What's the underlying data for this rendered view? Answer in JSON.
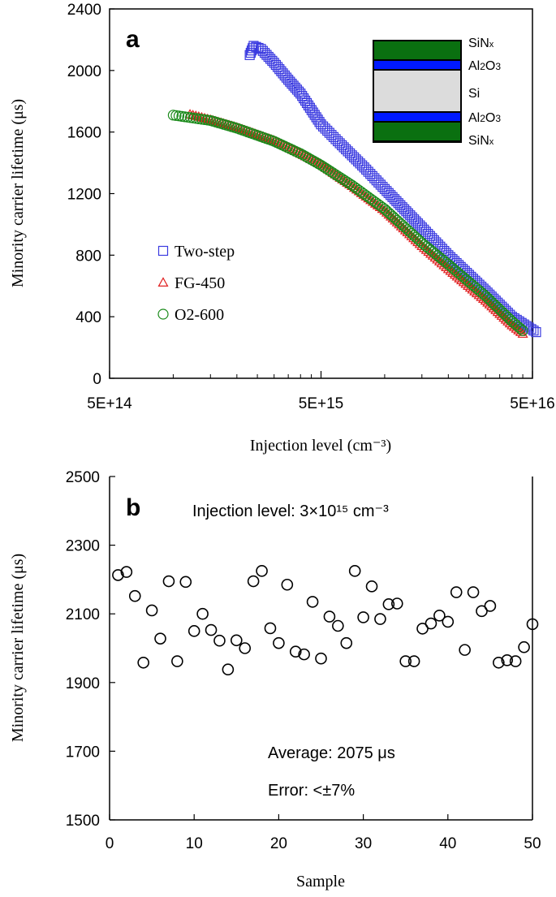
{
  "chart_data": [
    {
      "type": "scatter",
      "panel_label": "a",
      "xlabel": "Injection level (cm⁻³)",
      "ylabel": "Minority carrier lifetime (μs)",
      "x_scale": "log",
      "xlim": [
        500000000000000.0,
        5e+16
      ],
      "ylim": [
        0,
        2400
      ],
      "x_ticks": [
        "5E+14",
        "5E+15",
        "5E+16"
      ],
      "y_ticks": [
        "0",
        "400",
        "800",
        "1200",
        "1600",
        "2000",
        "2400"
      ],
      "legend_placement": "left",
      "inset_layers": [
        "SiNx",
        "Al2O3",
        "Si",
        "Al2O3",
        "SiNx"
      ],
      "inset_colors": {
        "SiNx": "#0a7010",
        "Al2O3": "#0019ff",
        "Si": "#dcdcdc"
      },
      "series": [
        {
          "name": "Two-step",
          "marker": "square",
          "color": "#3a3ae0",
          "x": [
            2300000000000000.0,
            2400000000000000.0,
            2600000000000000.0,
            3000000000000000.0,
            3500000000000000.0,
            4000000000000000.0,
            5000000000000000.0,
            6000000000000000.0,
            8000000000000000.0,
            1e+16,
            1.5e+16,
            2e+16,
            3e+16,
            4e+16,
            5.2e+16
          ],
          "y": [
            2100,
            2160,
            2140,
            2050,
            1940,
            1850,
            1650,
            1540,
            1370,
            1230,
            980,
            800,
            570,
            400,
            300
          ]
        },
        {
          "name": "FG-450",
          "marker": "triangle",
          "color": "#e02020",
          "x": [
            1200000000000000.0,
            1500000000000000.0,
            2000000000000000.0,
            3000000000000000.0,
            4000000000000000.0,
            5000000000000000.0,
            7000000000000000.0,
            1e+16,
            1.5e+16,
            2e+16,
            3e+16,
            4e+16,
            4.5e+16
          ],
          "y": [
            1715,
            1680,
            1630,
            1545,
            1460,
            1390,
            1250,
            1090,
            860,
            710,
            505,
            345,
            290
          ]
        },
        {
          "name": "O2-600",
          "marker": "circle",
          "color": "#1a8a1a",
          "x": [
            1000000000000000.0,
            1500000000000000.0,
            2000000000000000.0,
            3000000000000000.0,
            4000000000000000.0,
            5000000000000000.0,
            7000000000000000.0,
            1e+16,
            1.5e+16,
            2e+16,
            3e+16,
            4e+16,
            4.5e+16
          ],
          "y": [
            1710,
            1675,
            1625,
            1540,
            1460,
            1385,
            1255,
            1100,
            880,
            740,
            535,
            370,
            310
          ]
        }
      ]
    },
    {
      "type": "scatter",
      "panel_label": "b",
      "xlabel": "Sample",
      "ylabel": "Minority carrier lifetime (μs)",
      "xlim": [
        0,
        50
      ],
      "ylim": [
        1500,
        2500
      ],
      "x_ticks": [
        "0",
        "10",
        "20",
        "30",
        "40",
        "50"
      ],
      "y_ticks": [
        "1500",
        "1700",
        "1900",
        "2100",
        "2300",
        "2500"
      ],
      "annotation_injection": "Injection level: 3×10¹⁵ cm⁻³",
      "annotation_average": "Average: 2075 μs",
      "annotation_error": "Error: <±7%",
      "marker": "circle",
      "color": "#000000",
      "x": [
        1,
        2,
        3,
        4,
        5,
        6,
        7,
        8,
        9,
        10,
        11,
        12,
        13,
        14,
        15,
        16,
        17,
        18,
        19,
        20,
        21,
        22,
        23,
        24,
        25,
        26,
        27,
        28,
        29,
        30,
        31,
        32,
        33,
        34,
        35,
        36,
        37,
        38,
        39,
        40,
        41,
        42,
        43,
        44,
        45,
        46,
        47,
        48,
        49,
        50
      ],
      "y": [
        2213,
        2222,
        2152,
        1958,
        2110,
        2028,
        2195,
        1962,
        2193,
        2050,
        2100,
        2053,
        2022,
        1938,
        2023,
        2000,
        2195,
        2225,
        2058,
        2015,
        2185,
        1990,
        1982,
        2135,
        1970,
        2092,
        2065,
        2015,
        2225,
        2090,
        2180,
        2085,
        2128,
        2130,
        1962,
        1962,
        2057,
        2072,
        2095,
        2077,
        2163,
        1995,
        2163,
        2108,
        2123,
        1958,
        1965,
        1962,
        2003,
        2070
      ]
    }
  ]
}
